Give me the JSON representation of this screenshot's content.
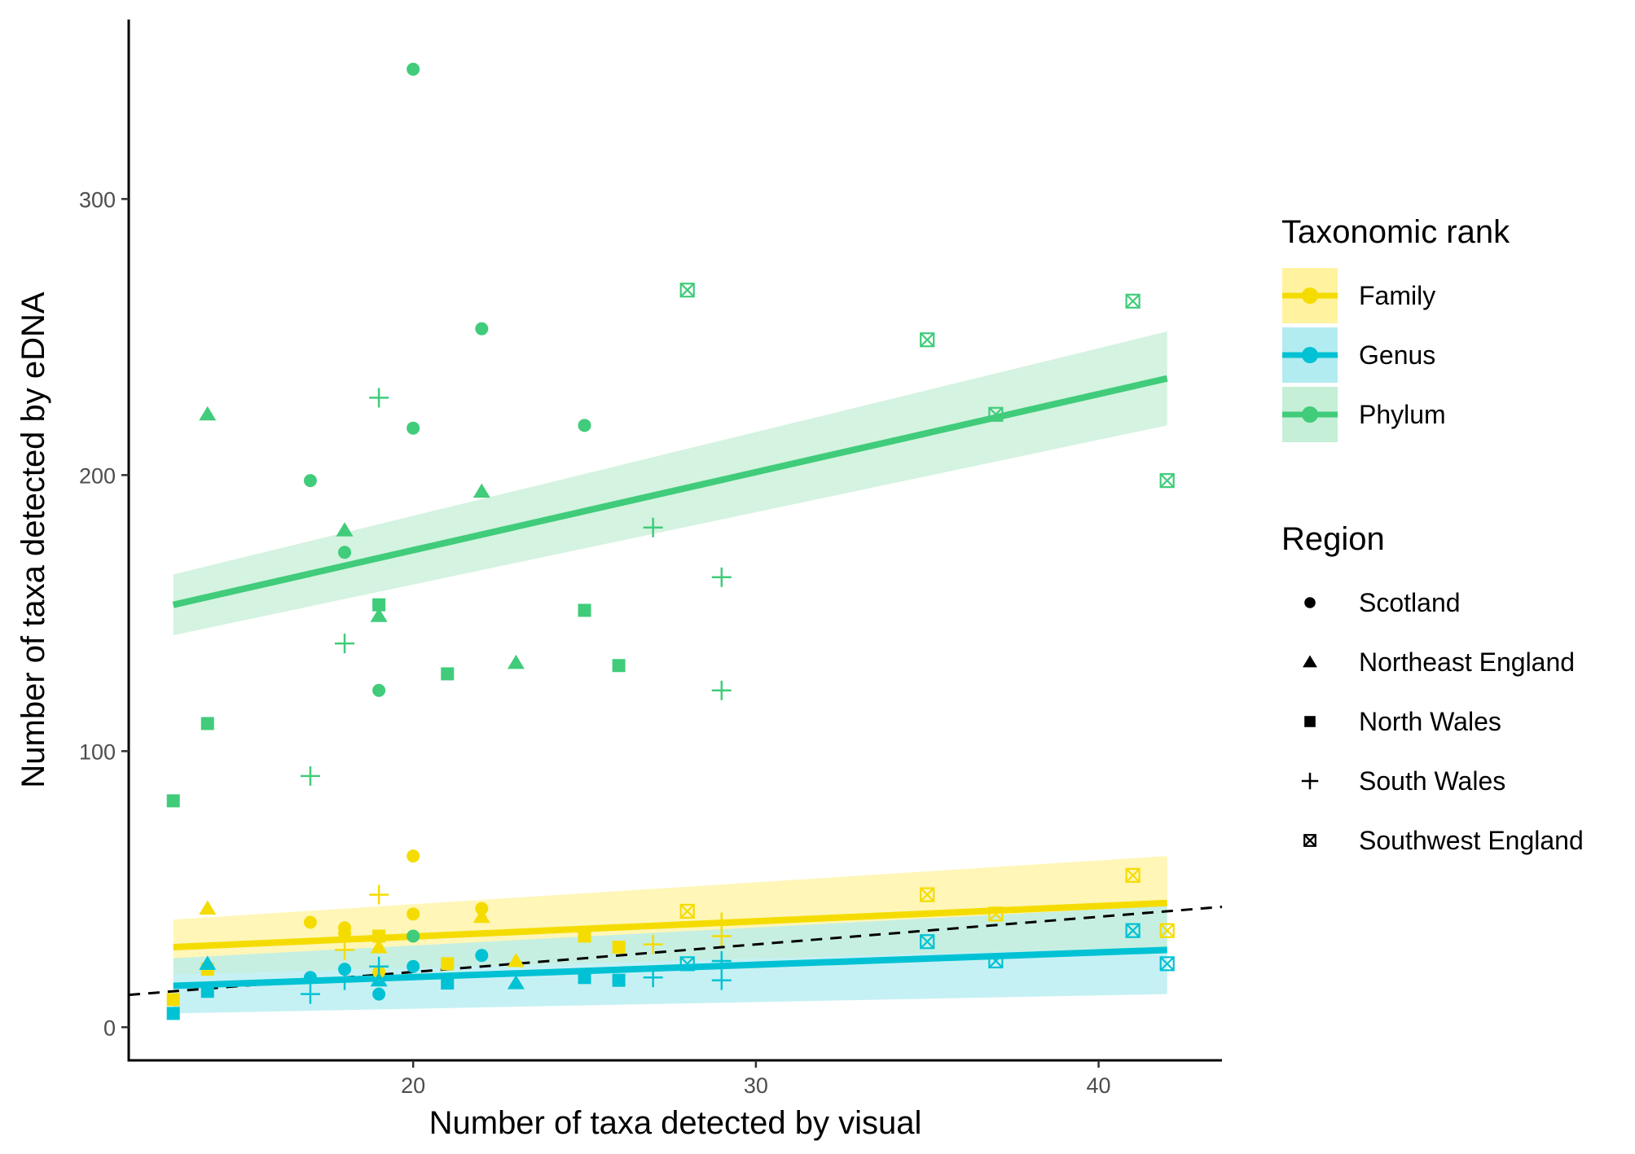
{
  "chart_data": {
    "type": "scatter",
    "xlabel": "Number of taxa detected by visual",
    "ylabel": "Number of taxa detected by eDNA",
    "xlim": [
      11.7,
      43.6
    ],
    "ylim": [
      -12,
      365
    ],
    "xticks": [
      20,
      30,
      40
    ],
    "yticks": [
      0,
      100,
      200,
      300
    ],
    "x_tick_labels": [
      "20",
      "30",
      "40"
    ],
    "y_tick_labels": [
      "0",
      "100",
      "200",
      "300"
    ],
    "grid": false,
    "legend_position": "right",
    "reference_line": {
      "style": "dashed",
      "color": "#000000",
      "from": [
        11.7,
        11.7
      ],
      "to": [
        43.6,
        43.6
      ]
    },
    "color_legend_title": "Taxonomic rank",
    "shape_legend_title": "Region",
    "regions": [
      {
        "name": "Scotland",
        "shape": "circle"
      },
      {
        "name": "Northeast England",
        "shape": "triangle"
      },
      {
        "name": "North Wales",
        "shape": "square"
      },
      {
        "name": "South Wales",
        "shape": "plus"
      },
      {
        "name": "Southwest England",
        "shape": "boxx"
      }
    ],
    "series": [
      {
        "name": "Family",
        "color": "#f5dc00",
        "fill": "#fff3a0",
        "fit": {
          "x": [
            13,
            42
          ],
          "y": [
            29,
            45
          ],
          "ci_low": [
            19,
            29
          ],
          "ci_high": [
            39,
            62
          ]
        },
        "points": [
          [
            13,
            10,
            "square"
          ],
          [
            14,
            21,
            "square"
          ],
          [
            14,
            43,
            "triangle"
          ],
          [
            17,
            38,
            "circle"
          ],
          [
            18,
            36,
            "circle"
          ],
          [
            18,
            34,
            "circle"
          ],
          [
            18,
            28,
            "plus"
          ],
          [
            19,
            33,
            "square"
          ],
          [
            19,
            29,
            "triangle"
          ],
          [
            19,
            20,
            "circle"
          ],
          [
            20,
            62,
            "circle"
          ],
          [
            20,
            41,
            "circle"
          ],
          [
            19,
            48,
            "plus"
          ],
          [
            21,
            23,
            "square"
          ],
          [
            22,
            43,
            "circle"
          ],
          [
            22,
            40,
            "triangle"
          ],
          [
            23,
            24,
            "triangle"
          ],
          [
            25,
            33,
            "square"
          ],
          [
            26,
            29,
            "square"
          ],
          [
            27,
            30,
            "plus"
          ],
          [
            28,
            42,
            "boxx"
          ],
          [
            29,
            38,
            "plus"
          ],
          [
            29,
            33,
            "plus"
          ],
          [
            35,
            48,
            "boxx"
          ],
          [
            37,
            41,
            "boxx"
          ],
          [
            41,
            55,
            "boxx"
          ],
          [
            42,
            35,
            "boxx"
          ]
        ]
      },
      {
        "name": "Genus",
        "color": "#00c2d4",
        "fill": "#b3ecf0",
        "fit": {
          "x": [
            13,
            42
          ],
          "y": [
            15,
            28
          ],
          "ci_low": [
            5,
            12
          ],
          "ci_high": [
            25,
            44
          ]
        },
        "points": [
          [
            13,
            5,
            "square"
          ],
          [
            14,
            13,
            "square"
          ],
          [
            14,
            23,
            "triangle"
          ],
          [
            17,
            18,
            "circle"
          ],
          [
            17,
            12,
            "plus"
          ],
          [
            18,
            21,
            "circle"
          ],
          [
            18,
            17,
            "plus"
          ],
          [
            19,
            12,
            "circle"
          ],
          [
            19,
            17,
            "triangle"
          ],
          [
            19,
            22,
            "plus"
          ],
          [
            20,
            22,
            "circle"
          ],
          [
            21,
            16,
            "square"
          ],
          [
            22,
            26,
            "circle"
          ],
          [
            23,
            16,
            "triangle"
          ],
          [
            25,
            18,
            "square"
          ],
          [
            26,
            17,
            "square"
          ],
          [
            27,
            18,
            "plus"
          ],
          [
            28,
            23,
            "boxx"
          ],
          [
            29,
            17,
            "plus"
          ],
          [
            29,
            24,
            "plus"
          ],
          [
            35,
            31,
            "boxx"
          ],
          [
            37,
            24,
            "boxx"
          ],
          [
            41,
            35,
            "boxx"
          ],
          [
            42,
            23,
            "boxx"
          ]
        ]
      },
      {
        "name": "Phylum",
        "color": "#40cc7a",
        "fill": "#c5efd6",
        "fit": {
          "x": [
            13,
            42
          ],
          "y": [
            153,
            235
          ],
          "ci_low": [
            142,
            218
          ],
          "ci_high": [
            164,
            252
          ]
        },
        "points": [
          [
            13,
            82,
            "square"
          ],
          [
            14,
            110,
            "square"
          ],
          [
            14,
            222,
            "triangle"
          ],
          [
            17,
            198,
            "circle"
          ],
          [
            17,
            91,
            "plus"
          ],
          [
            18,
            172,
            "circle"
          ],
          [
            18,
            180,
            "triangle"
          ],
          [
            18,
            139,
            "plus"
          ],
          [
            19,
            122,
            "circle"
          ],
          [
            19,
            153,
            "square"
          ],
          [
            19,
            149,
            "triangle"
          ],
          [
            19,
            228,
            "plus"
          ],
          [
            20,
            347,
            "circle"
          ],
          [
            20,
            217,
            "circle"
          ],
          [
            20,
            33,
            "circle"
          ],
          [
            21,
            128,
            "square"
          ],
          [
            22,
            253,
            "circle"
          ],
          [
            22,
            194,
            "triangle"
          ],
          [
            23,
            132,
            "triangle"
          ],
          [
            25,
            218,
            "circle"
          ],
          [
            25,
            151,
            "square"
          ],
          [
            26,
            131,
            "square"
          ],
          [
            27,
            181,
            "plus"
          ],
          [
            28,
            267,
            "boxx"
          ],
          [
            29,
            163,
            "plus"
          ],
          [
            29,
            122,
            "plus"
          ],
          [
            35,
            249,
            "boxx"
          ],
          [
            37,
            222,
            "boxx"
          ],
          [
            41,
            263,
            "boxx"
          ],
          [
            42,
            198,
            "boxx"
          ]
        ]
      }
    ]
  }
}
